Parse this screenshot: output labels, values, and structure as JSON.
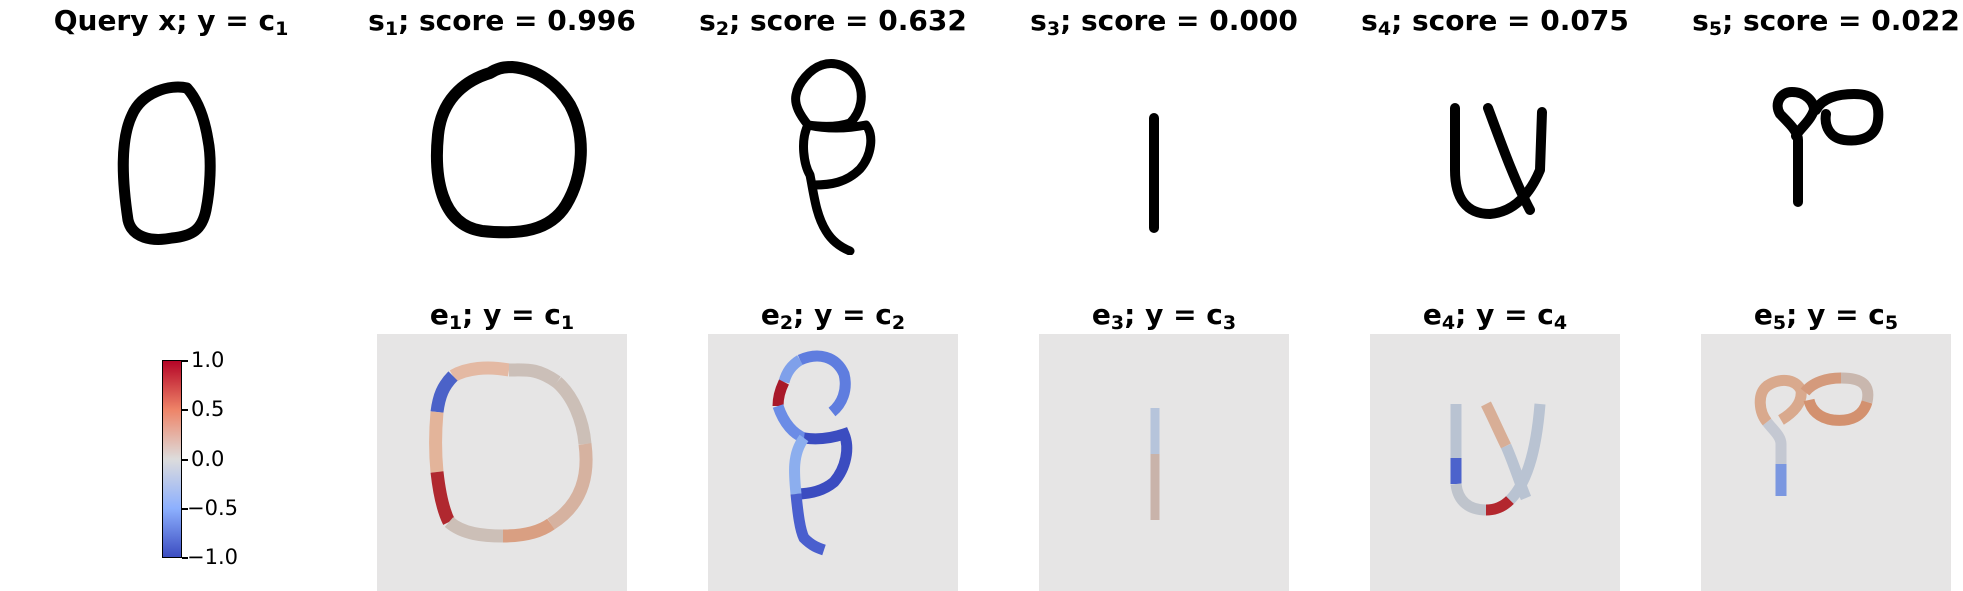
{
  "top_row": [
    {
      "prefix": "Query x; y = c",
      "sub": "1",
      "suffix": ""
    },
    {
      "prefix": "s",
      "sub": "1",
      "suffix": "; score = 0.996"
    },
    {
      "prefix": "s",
      "sub": "2",
      "suffix": "; score = 0.632"
    },
    {
      "prefix": "s",
      "sub": "3",
      "suffix": "; score = 0.000"
    },
    {
      "prefix": "s",
      "sub": "4",
      "suffix": "; score = 0.075"
    },
    {
      "prefix": "s",
      "sub": "5",
      "suffix": "; score = 0.022"
    }
  ],
  "bottom_row": [
    {
      "prefix": "e",
      "sub": "1",
      "mid": "; y = c",
      "sub2": "1"
    },
    {
      "prefix": "e",
      "sub": "2",
      "mid": "; y = c",
      "sub2": "2"
    },
    {
      "prefix": "e",
      "sub": "3",
      "mid": "; y = c",
      "sub2": "3"
    },
    {
      "prefix": "e",
      "sub": "4",
      "mid": "; y = c",
      "sub2": "4"
    },
    {
      "prefix": "e",
      "sub": "5",
      "mid": "; y = c",
      "sub2": "5"
    }
  ],
  "colorbar": {
    "ticks": [
      "1.0",
      "0.5",
      "0.0",
      "−0.5",
      "−1.0"
    ],
    "colormap": "coolwarm",
    "min": -1.0,
    "max": 1.0
  },
  "colors": {
    "explanation_background": "#e6e5e5",
    "stroke": "#000000",
    "cool": "#3b4cc0",
    "warm": "#b40426"
  }
}
